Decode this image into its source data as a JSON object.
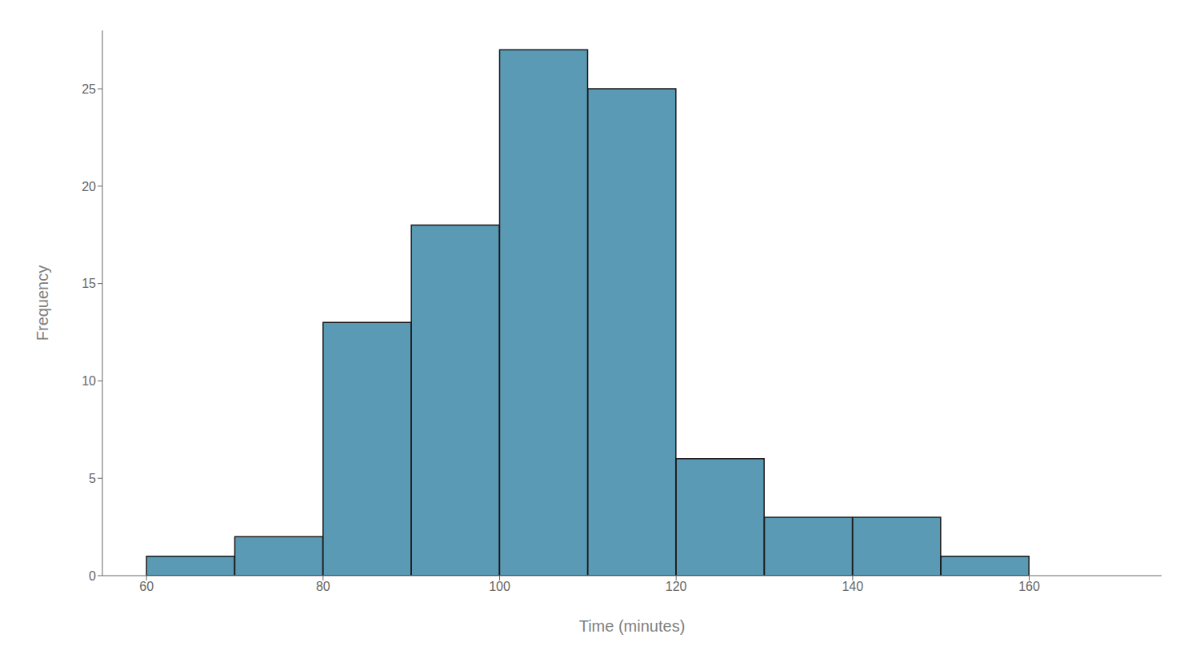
{
  "chart_data": {
    "type": "histogram",
    "xlabel": "Time (minutes)",
    "ylabel": "Frequency",
    "bins": [
      60,
      70,
      80,
      90,
      100,
      110,
      120,
      130,
      140,
      150,
      160
    ],
    "values": [
      1,
      2,
      13,
      18,
      27,
      25,
      6,
      3,
      3,
      1
    ],
    "color": "#5b9ab5",
    "xlim": [
      55,
      175
    ],
    "ylim": [
      0,
      28
    ],
    "xticks": [
      60,
      80,
      100,
      120,
      140,
      160
    ],
    "yticks": [
      0,
      5,
      10,
      15,
      20,
      25
    ],
    "grid": false
  }
}
